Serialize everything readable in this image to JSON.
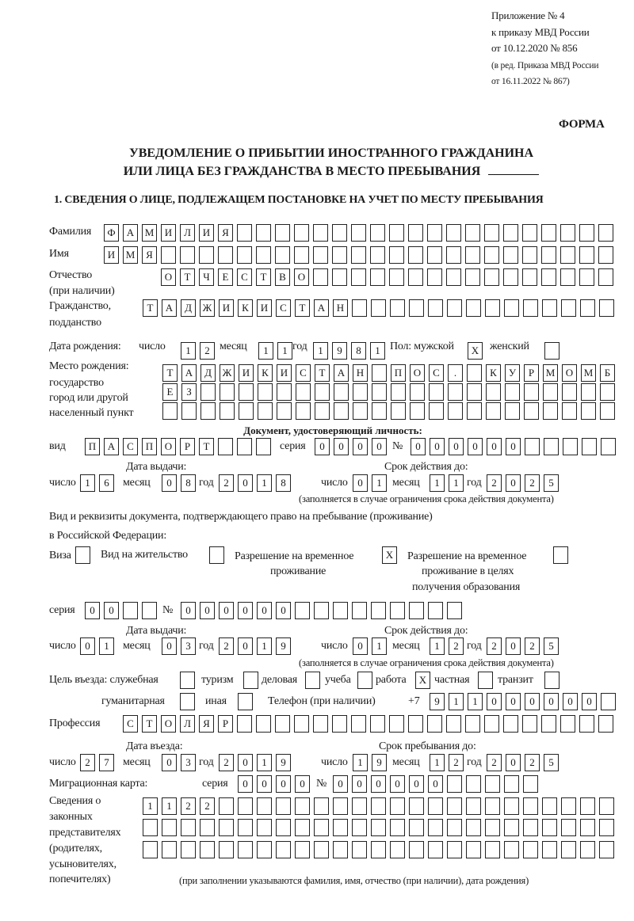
{
  "header": {
    "appendix": [
      "Приложение № 4",
      "к приказу МВД России",
      "от 10.12.2020 № 856",
      "(в ред. Приказа МВД России",
      "от 16.11.2022 № 867)"
    ],
    "form_label": "ФОРМА",
    "title_line1": "УВЕДОМЛЕНИЕ О ПРИБЫТИИ ИНОСТРАННОГО ГРАЖДАНИНА",
    "title_line2": "ИЛИ ЛИЦА БЕЗ ГРАЖДАНСТВА В МЕСТО ПРЕБЫВАНИЯ",
    "section1_heading": "1. СВЕДЕНИЯ О ЛИЦЕ, ПОДЛЕЖАЩЕМ ПОСТАНОВКЕ НА УЧЕТ ПО МЕСТУ ПРЕБЫВАНИЯ"
  },
  "common": {
    "day": "число",
    "month": "месяц",
    "year": "год",
    "number_sign": "№",
    "series": "серия",
    "note_validity": "(заполняется в случае ограничения срока действия документа)"
  },
  "person": {
    "surname": {
      "label": "Фамилия",
      "value": "ФАМИЛИЯ"
    },
    "name": {
      "label": "Имя",
      "value": "ИМЯ"
    },
    "patronymic": {
      "label": "Отчество",
      "label2": "(при наличии)",
      "value": "ОТЧЕСТВО"
    },
    "citizenship": {
      "label": "Гражданство,",
      "label2": "подданство",
      "value": "ТАДЖИКИСТАН"
    },
    "birth_date": {
      "label": "Дата рождения:",
      "day": "12",
      "month": "11",
      "year": "1981"
    },
    "sex": {
      "male_label": "Пол: мужской",
      "male": "X",
      "female_label": "женский",
      "female": ""
    },
    "birth_place": {
      "labels": [
        "Место рождения:",
        "государство",
        "город или другой",
        "населенный пункт"
      ],
      "lines": [
        "ТАДЖИКИСТАН ПОС. КУРМОМБ",
        "ЕЗ",
        ""
      ]
    }
  },
  "identity_doc": {
    "heading": "Документ, удостоверяющий личность:",
    "type_label": "вид",
    "type": "ПАСПОРТ",
    "series": "0000",
    "number": "000000",
    "issue_heading": "Дата выдачи:",
    "issue": {
      "day": "16",
      "month": "08",
      "year": "2018"
    },
    "valid_heading": "Срок действия до:",
    "valid": {
      "day": "01",
      "month": "11",
      "year": "2025"
    }
  },
  "stay_doc": {
    "description": "Вид и реквизиты документа, подтверждающего право на пребывание (проживание)",
    "description2": "в Российской Федерации:",
    "visa": {
      "label": "Виза",
      "checked": ""
    },
    "residence_permit": {
      "label": "Вид на жительство",
      "checked": ""
    },
    "temp_residence": {
      "label": "Разрешение на временное",
      "label2": "проживание",
      "checked": "X"
    },
    "temp_residence_edu": {
      "label": "Разрешение на временное",
      "label2": "проживание в целях",
      "label3": "получения образования",
      "checked": ""
    },
    "series": "00",
    "number": "000000",
    "issue_heading": "Дата выдачи:",
    "issue": {
      "day": "01",
      "month": "03",
      "year": "2019"
    },
    "valid_heading": "Срок действия до:",
    "valid": {
      "day": "01",
      "month": "12",
      "year": "2025"
    }
  },
  "entry_purpose": {
    "label": "Цель въезда: служебная",
    "service": "",
    "tourism_label": "туризм",
    "tourism": "",
    "business_label": "деловая",
    "business": "",
    "study_label": "учеба",
    "study": "",
    "work_label": "работа",
    "work": "X",
    "private_label": "частная",
    "private": "",
    "transit_label": "транзит",
    "transit": "",
    "humanitarian_label": "гуманитарная",
    "humanitarian": "",
    "other_label": "иная",
    "other": ""
  },
  "phone": {
    "label": "Телефон (при наличии)",
    "prefix": "+7",
    "value": "911000000"
  },
  "profession": {
    "label": "Профессия",
    "value": "СТОЛЯР"
  },
  "entry_date": {
    "heading": "Дата въезда:",
    "day": "27",
    "month": "03",
    "year": "2019"
  },
  "stay_until": {
    "heading": "Срок пребывания до:",
    "day": "19",
    "month": "12",
    "year": "2025"
  },
  "migration_card": {
    "label": "Миграционная карта:",
    "series": "0000",
    "number": "000000"
  },
  "legal_reps": {
    "labels": [
      "Сведения о",
      "законных",
      "представителях",
      "(родителях,",
      "усыновителях,",
      "попечителях)"
    ],
    "lines": [
      "1122",
      "",
      ""
    ],
    "note": "(при заполнении указываются фамилия, имя, отчество (при наличии), дата рождения)"
  }
}
